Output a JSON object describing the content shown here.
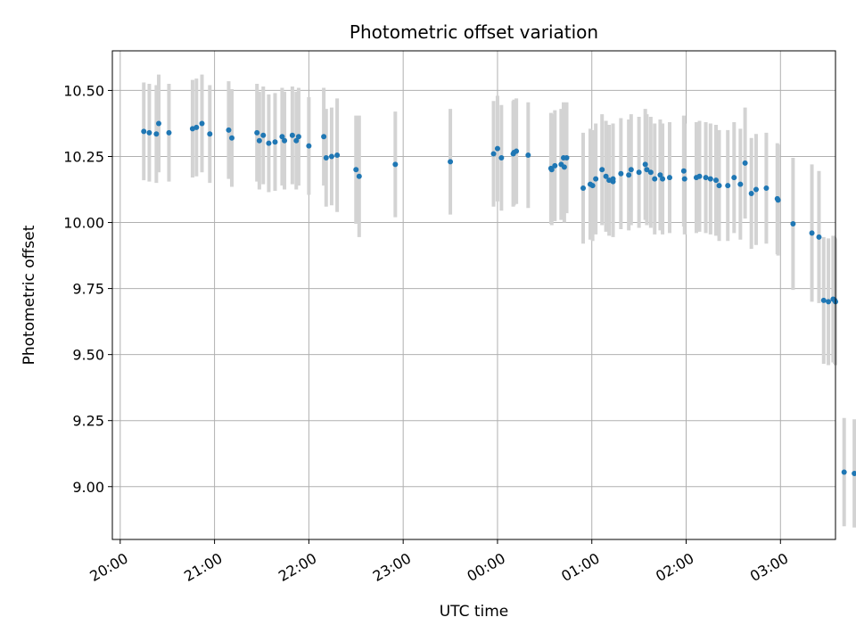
{
  "chart_data": {
    "type": "scatter",
    "title": "Photometric offset variation",
    "xlabel": "UTC time",
    "ylabel": "Photometric offset",
    "x_ticks": [
      "20:00",
      "21:00",
      "22:00",
      "23:00",
      "00:00",
      "01:00",
      "02:00",
      "03:00"
    ],
    "y_ticks": [
      "9.00",
      "9.25",
      "9.50",
      "9.75",
      "10.00",
      "10.25",
      "10.50"
    ],
    "xlim": [
      "19:55",
      "03:35"
    ],
    "ylim": [
      8.8,
      10.65
    ],
    "grid": true,
    "colors": {
      "point": "#1f77b4",
      "errorbar": "#d3d3d3",
      "grid": "#b0b0b0"
    },
    "x_units": "minutes after 20:00 UTC",
    "series": [
      {
        "x": [
          15.0,
          18.5,
          23.0,
          24.5,
          31.0,
          46.0,
          48.5,
          52.0,
          57.0,
          69.0,
          71.0,
          87.0,
          88.5,
          91.0,
          94.5,
          98.5,
          103.0,
          104.5,
          109.5,
          112.0,
          113.5,
          120.0,
          129.5,
          131.0,
          134.5,
          138.0,
          150.0,
          152.0,
          175.0,
          210.0,
          237.5,
          240.0,
          242.5,
          250.0,
          250.5,
          252.0,
          259.5,
          274.0,
          274.5,
          276.5,
          280.5,
          282.0,
          282.5,
          284.0,
          294.5,
          299.0,
          300.5,
          302.5,
          306.5,
          309.0,
          311.0,
          313.5,
          313.5,
          318.5,
          323.5,
          325.0,
          330.0,
          334.0,
          335.0,
          337.5,
          340.0,
          343.5,
          345.0,
          349.5,
          358.5,
          359.0,
          366.5,
          368.5,
          372.5,
          375.5,
          379.0,
          381.0,
          386.5,
          390.5,
          394.5,
          397.5,
          401.5,
          404.5,
          411.0,
          418.0,
          418.5,
          428.0,
          440.0,
          444.5,
          447.5,
          450.5,
          453.5,
          454.5,
          455.0,
          460.5,
          467.0,
          478.0
        ],
        "y": [
          10.345,
          10.34,
          10.335,
          10.375,
          10.34,
          10.355,
          10.36,
          10.375,
          10.335,
          10.35,
          10.32,
          10.34,
          10.31,
          10.33,
          10.3,
          10.305,
          10.325,
          10.31,
          10.33,
          10.31,
          10.325,
          10.29,
          10.325,
          10.245,
          10.25,
          10.255,
          10.2,
          10.175,
          10.22,
          10.23,
          10.26,
          10.28,
          10.245,
          10.26,
          10.265,
          10.27,
          10.255,
          10.205,
          10.2,
          10.215,
          10.22,
          10.245,
          10.21,
          10.245,
          10.13,
          10.145,
          10.14,
          10.165,
          10.2,
          10.175,
          10.16,
          10.155,
          10.165,
          10.185,
          10.18,
          10.2,
          10.19,
          10.22,
          10.2,
          10.19,
          10.165,
          10.18,
          10.165,
          10.17,
          10.195,
          10.165,
          10.17,
          10.175,
          10.17,
          10.165,
          10.16,
          10.14,
          10.14,
          10.17,
          10.145,
          10.225,
          10.11,
          10.125,
          10.13,
          10.09,
          10.085,
          9.995,
          9.96,
          9.945,
          9.705,
          9.7,
          9.71,
          9.705,
          9.7,
          9.055,
          9.05,
          9.055
        ],
        "yerr": [
          0.185,
          0.185,
          0.185,
          0.185,
          0.185,
          0.185,
          0.185,
          0.185,
          0.185,
          0.185,
          0.185,
          0.185,
          0.185,
          0.185,
          0.185,
          0.185,
          0.185,
          0.185,
          0.185,
          0.185,
          0.185,
          0.185,
          0.185,
          0.185,
          0.185,
          0.215,
          0.205,
          0.23,
          0.2,
          0.2,
          0.2,
          0.2,
          0.2,
          0.2,
          0.2,
          0.2,
          0.2,
          0.21,
          0.21,
          0.21,
          0.21,
          0.21,
          0.21,
          0.21,
          0.21,
          0.21,
          0.21,
          0.21,
          0.21,
          0.21,
          0.21,
          0.21,
          0.21,
          0.21,
          0.21,
          0.21,
          0.21,
          0.21,
          0.21,
          0.21,
          0.21,
          0.21,
          0.21,
          0.21,
          0.21,
          0.21,
          0.21,
          0.21,
          0.21,
          0.21,
          0.21,
          0.21,
          0.21,
          0.21,
          0.21,
          0.21,
          0.21,
          0.21,
          0.21,
          0.21,
          0.21,
          0.25,
          0.26,
          0.25,
          0.24,
          0.24,
          0.24,
          0.24,
          0.24,
          0.205,
          0.205,
          0.205
        ]
      }
    ]
  }
}
